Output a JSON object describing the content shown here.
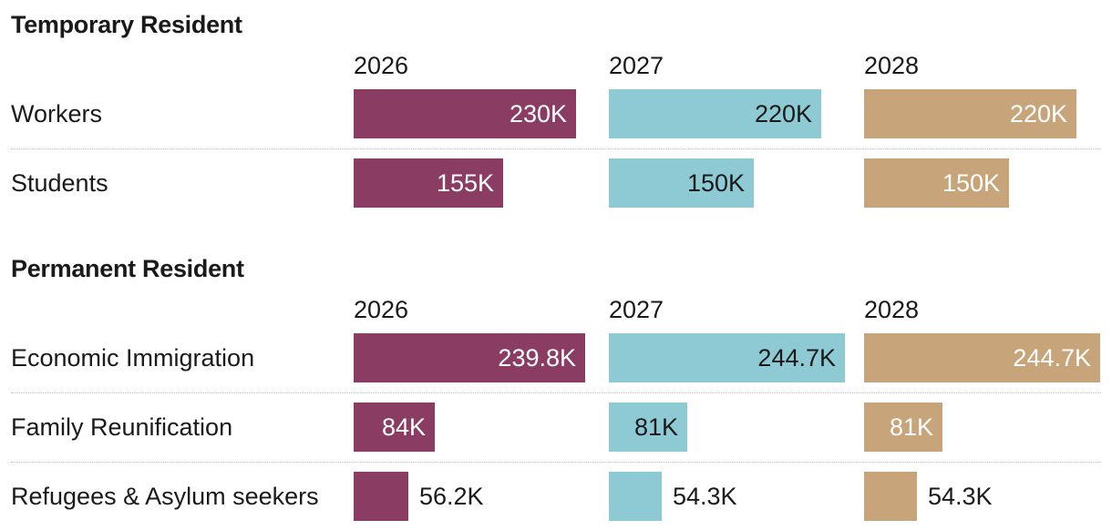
{
  "chart_data": [
    {
      "type": "bar",
      "title": "Temporary Resident",
      "years": [
        "2026",
        "2027",
        "2028"
      ],
      "categories": [
        "Workers",
        "Students"
      ],
      "series": [
        {
          "name": "2026",
          "color": "#8a3c62",
          "values": [
            230,
            155
          ],
          "labels": [
            "230K",
            "155K"
          ]
        },
        {
          "name": "2027",
          "color": "#8ecad4",
          "values": [
            220,
            150
          ],
          "labels": [
            "220K",
            "150K"
          ]
        },
        {
          "name": "2028",
          "color": "#c7a47a",
          "values": [
            220,
            150
          ],
          "labels": [
            "220K",
            "150K"
          ]
        }
      ],
      "unit": "thousands"
    },
    {
      "type": "bar",
      "title": "Permanent Resident",
      "years": [
        "2026",
        "2027",
        "2028"
      ],
      "categories": [
        "Economic Immigration",
        "Family Reunification",
        "Refugees & Asylum seekers"
      ],
      "series": [
        {
          "name": "2026",
          "color": "#8a3c62",
          "values": [
            239.8,
            84,
            56.2
          ],
          "labels": [
            "239.8K",
            "84K",
            "56.2K"
          ]
        },
        {
          "name": "2027",
          "color": "#8ecad4",
          "values": [
            244.7,
            81,
            54.3
          ],
          "labels": [
            "244.7K",
            "81K",
            "54.3K"
          ]
        },
        {
          "name": "2028",
          "color": "#c7a47a",
          "values": [
            244.7,
            81,
            54.3
          ],
          "labels": [
            "244.7K",
            "81K",
            "54.3K"
          ]
        }
      ],
      "unit": "thousands"
    }
  ],
  "colors": {
    "text": "#1a1a1a",
    "label_on_dark": "#ffffff",
    "label_on_light": "#1a1a1a",
    "divider": "#bdbdbd"
  }
}
